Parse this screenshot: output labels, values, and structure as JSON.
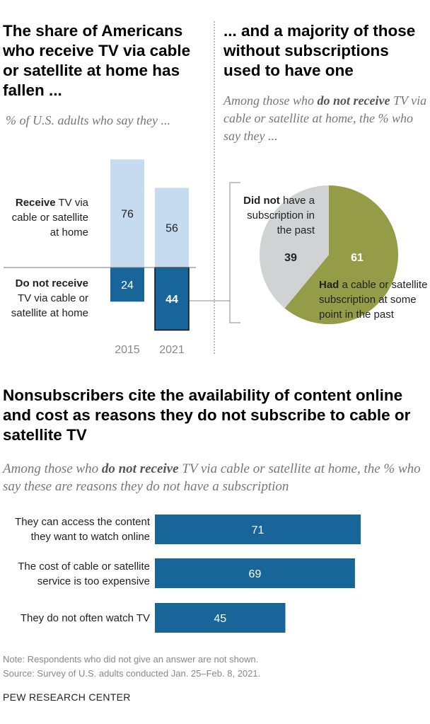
{
  "left": {
    "title": "The share of Americans who receive TV via cable or satellite at home has fallen ...",
    "subtitle": "% of U.S. adults who say they ...",
    "receive_bold": "Receive",
    "receive_rest": " TV via cable or satellite at home",
    "notrec_bold": "Do not receive",
    "notrec_rest": " TV via cable or satellite at home"
  },
  "right": {
    "title": "... and a majority of those without subscriptions used to have one",
    "subtitle_pre": "Among those who ",
    "subtitle_bold": "do not receive",
    "subtitle_post": " TV via cable or satellite at home, the % who say they ...",
    "didnot_bold": "Did not",
    "didnot_rest": " have a subscription in the past",
    "had_bold": "Had",
    "had_rest": " a cable or satellite subscription at some point in the past"
  },
  "bottom": {
    "title": "Nonsubscribers cite the availability of content online and cost as reasons they do not subscribe to cable or satellite TV",
    "subtitle_pre": "Among those who ",
    "subtitle_bold": "do not receive",
    "subtitle_post": " TV via cable or satellite at home, the % who say these are reasons they do not have a subscription"
  },
  "note": "Note: Respondents who did not give an answer are not shown.",
  "source": "Source: Survey of U.S. adults conducted Jan. 25–Feb. 8, 2021.",
  "brand": "PEW RESEARCH CENTER",
  "colors": {
    "light_blue": "#c6dbef",
    "dark_blue": "#176599",
    "olive": "#949c48",
    "gray": "#d1d2d4"
  },
  "chart_data": [
    {
      "type": "bar",
      "stacked": true,
      "categories": [
        "2015",
        "2021"
      ],
      "series": [
        {
          "name": "Receive TV via cable or satellite at home",
          "values": [
            76,
            56
          ]
        },
        {
          "name": "Do not receive TV via cable or satellite at home",
          "values": [
            24,
            44
          ]
        }
      ]
    },
    {
      "type": "pie",
      "labels": [
        "Had a cable or satellite subscription at some point in the past",
        "Did not have a subscription in the past"
      ],
      "values": [
        61,
        39
      ]
    },
    {
      "type": "bar",
      "orientation": "horizontal",
      "categories": [
        "They can access the content they want to watch online",
        "The cost of cable or satellite service is too expensive",
        "They do not often watch TV"
      ],
      "values": [
        71,
        69,
        45
      ]
    }
  ]
}
